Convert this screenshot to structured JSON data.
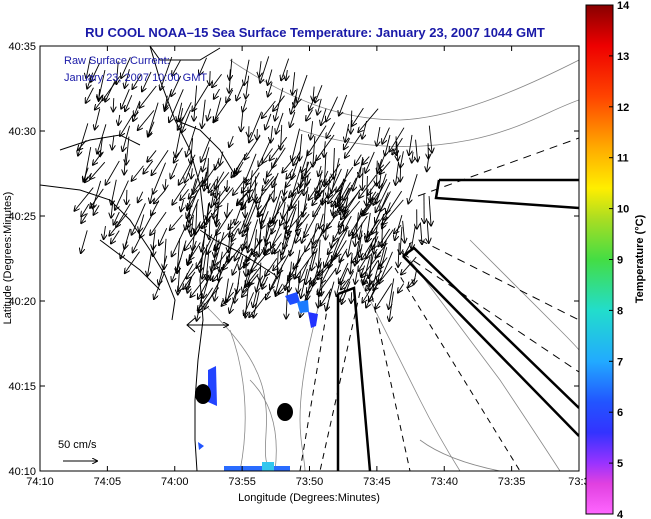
{
  "title": "RU COOL  NOAA–15  Sea Surface Temperature:  January 23, 2007 1044 GMT",
  "overlay": {
    "line1": "Raw Surface Current:",
    "line2": "January 23, 2007 10:00 GMT"
  },
  "scale_label": "50 cm/s",
  "colors": {
    "title": "#1a1aa8",
    "land": "#ffffff",
    "contour": "#888888",
    "coast": "#000000"
  },
  "chart_data": {
    "type": "map",
    "title": "RU COOL  NOAA–15  Sea Surface Temperature:  January 23, 2007 1044 GMT",
    "xlabel": "Longitude (Degrees:Minutes)",
    "ylabel": "Latitude (Degrees:Minutes)",
    "x_ticks": [
      "74:10",
      "74:05",
      "74:00",
      "73:55",
      "73:50",
      "73:45",
      "73:40",
      "73:35",
      "73:3"
    ],
    "y_ticks": [
      "40:10",
      "40:15",
      "40:20",
      "40:25",
      "40:30",
      "40:35"
    ],
    "colorbar": {
      "label": "Temperature (°C)",
      "ticks": [
        "4",
        "5",
        "6",
        "7",
        "8",
        "9",
        "10",
        "11",
        "12",
        "13",
        "14"
      ],
      "range": [
        4,
        14
      ]
    }
  }
}
